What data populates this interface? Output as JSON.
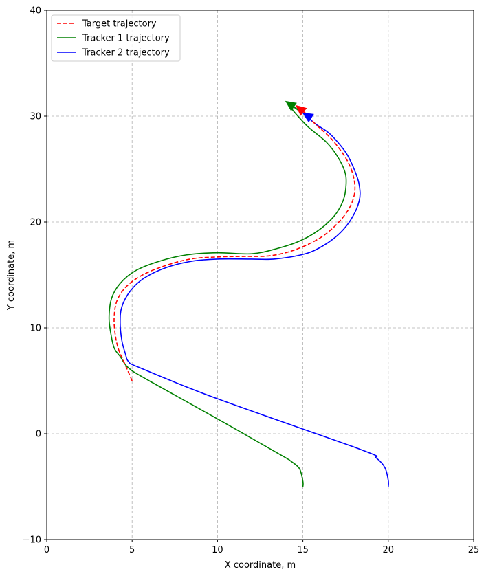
{
  "chart_data": {
    "type": "line",
    "xlabel": "X coordinate, m",
    "ylabel": "Y coordinate, m",
    "xlim": [
      0,
      25
    ],
    "ylim": [
      -10,
      40
    ],
    "x_ticks": [
      "0",
      "5",
      "10",
      "15",
      "20",
      "25"
    ],
    "y_ticks": [
      "−10",
      "0",
      "10",
      "20",
      "30",
      "40"
    ],
    "grid": true,
    "legend_position": "top-left",
    "series": [
      {
        "name": "Target trajectory",
        "color": "#ff0000",
        "style": "dashed",
        "points": [
          [
            5.0,
            5.0
          ],
          [
            4.6,
            6.5
          ],
          [
            4.2,
            8.0
          ],
          [
            4.0,
            9.5
          ],
          [
            3.95,
            11.0
          ],
          [
            4.1,
            12.5
          ],
          [
            4.6,
            13.8
          ],
          [
            5.5,
            14.9
          ],
          [
            6.8,
            15.8
          ],
          [
            8.4,
            16.5
          ],
          [
            10.0,
            16.7
          ],
          [
            11.5,
            16.75
          ],
          [
            13.0,
            16.8
          ],
          [
            14.4,
            17.3
          ],
          [
            15.8,
            18.3
          ],
          [
            16.8,
            19.5
          ],
          [
            17.6,
            21.0
          ],
          [
            18.0,
            22.5
          ],
          [
            18.0,
            24.0
          ],
          [
            17.6,
            25.8
          ],
          [
            16.7,
            27.8
          ],
          [
            15.7,
            29.3
          ],
          [
            15.0,
            30.5
          ]
        ]
      },
      {
        "name": "Tracker 1 trajectory",
        "color": "#008000",
        "style": "solid",
        "points": [
          [
            15.0,
            -5.0
          ],
          [
            15.0,
            -4.5
          ],
          [
            14.8,
            -3.3
          ],
          [
            14.3,
            -2.6
          ],
          [
            13.7,
            -2.0
          ],
          [
            10.0,
            1.4
          ],
          [
            6.0,
            5.0
          ],
          [
            4.8,
            6.2
          ],
          [
            4.3,
            7.3
          ],
          [
            3.95,
            8.1
          ],
          [
            3.75,
            9.5
          ],
          [
            3.65,
            11.0
          ],
          [
            3.8,
            12.8
          ],
          [
            4.3,
            14.2
          ],
          [
            5.2,
            15.4
          ],
          [
            6.6,
            16.3
          ],
          [
            8.2,
            16.9
          ],
          [
            10.0,
            17.1
          ],
          [
            12.0,
            17.0
          ],
          [
            13.5,
            17.5
          ],
          [
            14.8,
            18.2
          ],
          [
            15.9,
            19.2
          ],
          [
            16.8,
            20.5
          ],
          [
            17.3,
            21.8
          ],
          [
            17.5,
            23.0
          ],
          [
            17.5,
            24.5
          ],
          [
            17.1,
            26.0
          ],
          [
            16.4,
            27.5
          ],
          [
            15.3,
            29.0
          ],
          [
            14.6,
            30.2
          ],
          [
            14.3,
            30.8
          ]
        ]
      },
      {
        "name": "Tracker 2 trajectory",
        "color": "#0000ff",
        "style": "solid",
        "points": [
          [
            20.0,
            -5.0
          ],
          [
            20.0,
            -4.4
          ],
          [
            19.8,
            -3.2
          ],
          [
            19.3,
            -2.3
          ],
          [
            18.4,
            -1.5
          ],
          [
            10.0,
            3.3
          ],
          [
            5.5,
            6.2
          ],
          [
            4.8,
            6.8
          ],
          [
            4.6,
            7.6
          ],
          [
            4.4,
            8.8
          ],
          [
            4.3,
            10.5
          ],
          [
            4.4,
            12.0
          ],
          [
            4.9,
            13.5
          ],
          [
            5.7,
            14.7
          ],
          [
            7.0,
            15.7
          ],
          [
            8.5,
            16.3
          ],
          [
            10.0,
            16.5
          ],
          [
            12.0,
            16.5
          ],
          [
            13.3,
            16.5
          ],
          [
            14.9,
            16.9
          ],
          [
            15.9,
            17.5
          ],
          [
            17.0,
            18.7
          ],
          [
            17.8,
            20.2
          ],
          [
            18.3,
            22.0
          ],
          [
            18.3,
            23.5
          ],
          [
            18.0,
            25.0
          ],
          [
            17.5,
            26.6
          ],
          [
            16.6,
            28.3
          ],
          [
            15.8,
            29.2
          ],
          [
            15.2,
            30.0
          ]
        ]
      }
    ],
    "arrows": [
      {
        "series": "Tracker 1 trajectory",
        "color": "#008000",
        "tail": [
          14.8,
          30.5
        ],
        "head": [
          14.0,
          31.4
        ]
      },
      {
        "series": "Target trajectory",
        "color": "#ff0000",
        "tail": [
          15.2,
          30.2
        ],
        "head": [
          14.6,
          31.0
        ]
      },
      {
        "series": "Tracker 2 trajectory",
        "color": "#0000ff",
        "tail": [
          15.5,
          29.8
        ],
        "head": [
          15.0,
          30.3
        ]
      }
    ]
  }
}
